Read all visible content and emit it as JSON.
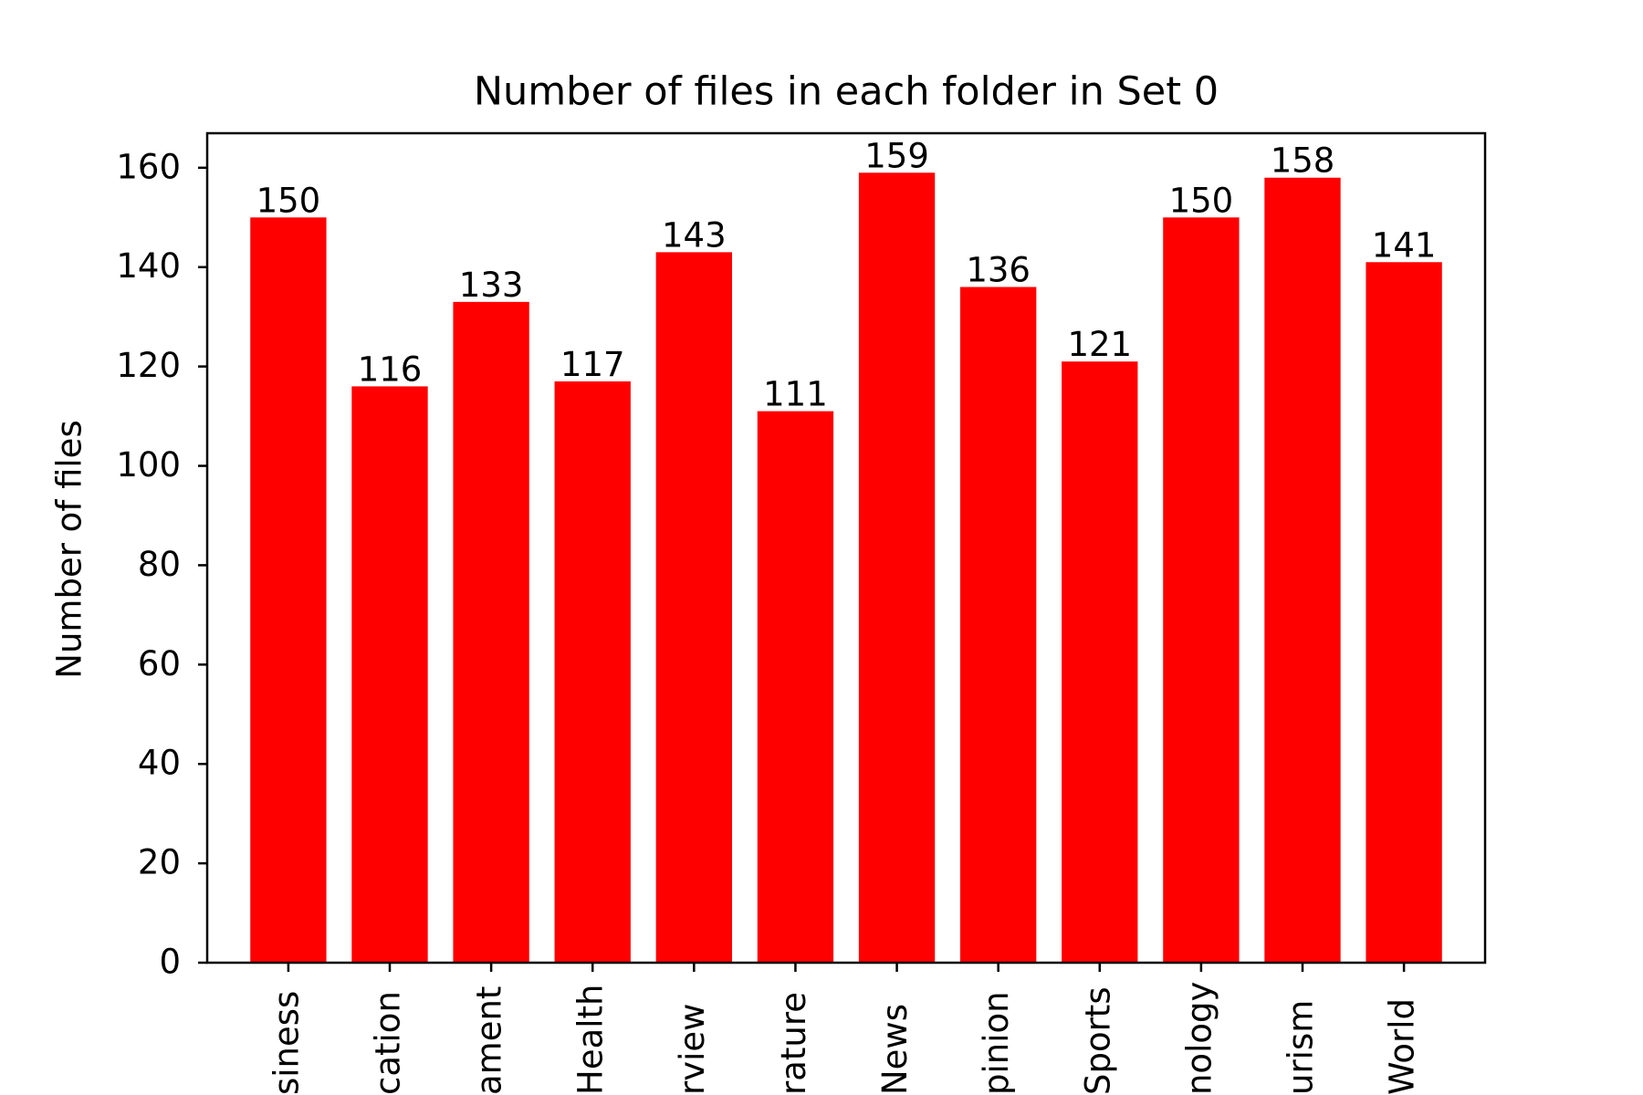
{
  "chart_data": {
    "type": "bar",
    "title": "Number of files in each folder in Set 0",
    "xlabel": "",
    "ylabel": "Number of files",
    "categories": [
      "Business",
      "Education",
      "Entertainment",
      "Health",
      "Interview",
      "Literature",
      "News",
      "Opinion",
      "Sports",
      "Technology",
      "Tourism",
      "World"
    ],
    "tick_labels_visible": [
      "siness",
      "cation",
      "ament",
      "Health",
      "rview",
      "rature",
      "News",
      "pinion",
      "Sports",
      "nology",
      "urism",
      "World"
    ],
    "values": [
      150,
      116,
      133,
      117,
      143,
      111,
      159,
      136,
      121,
      150,
      158,
      141
    ],
    "data_labels": [
      "150",
      "116",
      "133",
      "117",
      "143",
      "111",
      "159",
      "136",
      "121",
      "150",
      "158",
      "141"
    ],
    "ylim": [
      0,
      166.95
    ],
    "yticks": [
      0,
      20,
      40,
      60,
      80,
      100,
      120,
      140,
      160
    ],
    "ytick_labels": [
      "0",
      "20",
      "40",
      "60",
      "80",
      "100",
      "120",
      "140",
      "160"
    ],
    "bar_color": "#ff0000",
    "axis_color": "#000000",
    "text_color": "#000000",
    "grid": false,
    "legend": "none",
    "xtick_rotation": "vertical"
  }
}
